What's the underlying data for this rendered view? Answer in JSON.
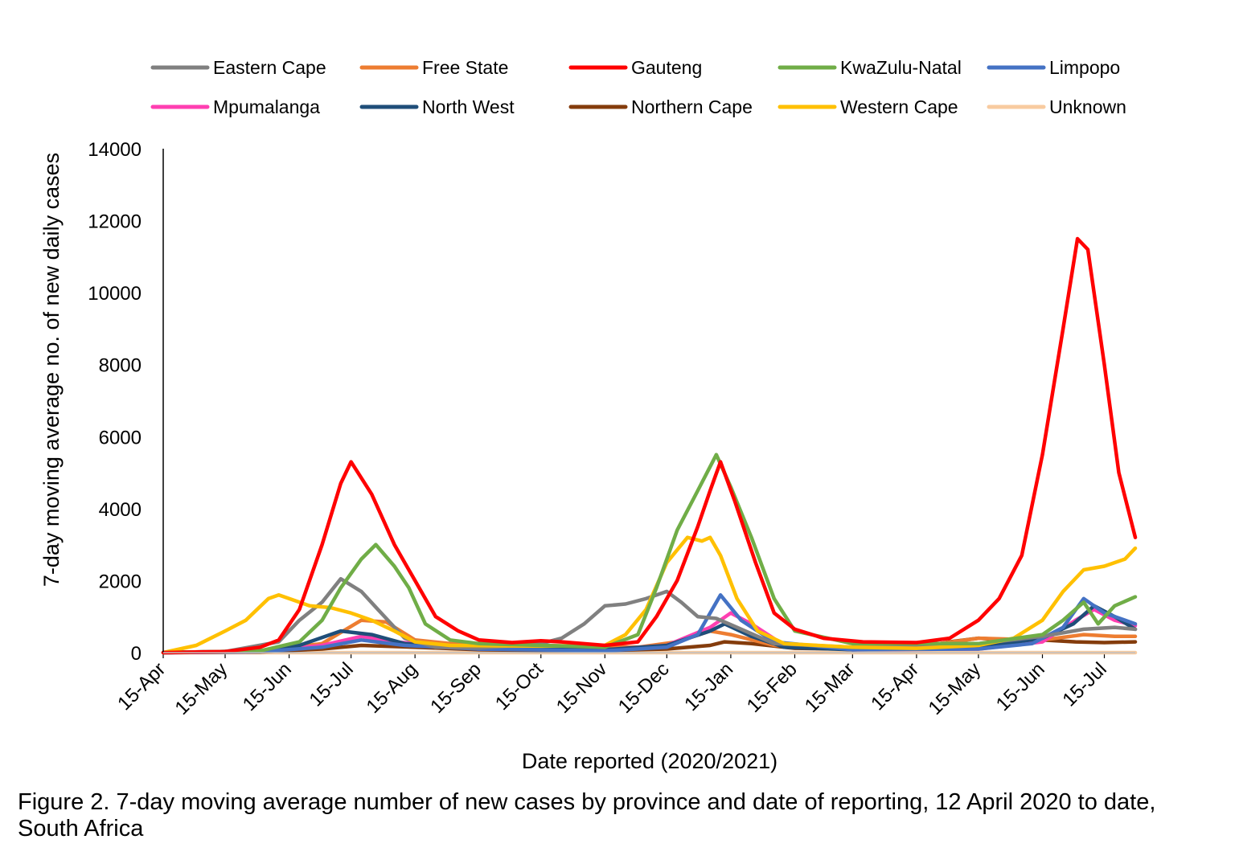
{
  "caption": "Figure 2. 7-day moving average number of new cases by province and date of reporting, 12 April 2020 to date, South Africa",
  "chart_data": {
    "type": "line",
    "xlabel": "Date reported (2020/2021)",
    "ylabel": "7-day moving average no. of new daily cases",
    "ylim": [
      0,
      14000
    ],
    "yticks": [
      0,
      2000,
      4000,
      6000,
      8000,
      10000,
      12000,
      14000
    ],
    "xlim": [
      "2020-04-15",
      "2021-07-30"
    ],
    "xticks": [
      {
        "date": "2020-04-15",
        "label": "15-Apr"
      },
      {
        "date": "2020-05-15",
        "label": "15-May"
      },
      {
        "date": "2020-06-15",
        "label": "15-Jun"
      },
      {
        "date": "2020-07-15",
        "label": "15-Jul"
      },
      {
        "date": "2020-08-15",
        "label": "15-Aug"
      },
      {
        "date": "2020-09-15",
        "label": "15-Sep"
      },
      {
        "date": "2020-10-15",
        "label": "15-Oct"
      },
      {
        "date": "2020-11-15",
        "label": "15-Nov"
      },
      {
        "date": "2020-12-15",
        "label": "15-Dec"
      },
      {
        "date": "2021-01-15",
        "label": "15-Jan"
      },
      {
        "date": "2021-02-15",
        "label": "15-Feb"
      },
      {
        "date": "2021-03-15",
        "label": "15-Mar"
      },
      {
        "date": "2021-04-15",
        "label": "15-Apr"
      },
      {
        "date": "2021-05-15",
        "label": "15-May"
      },
      {
        "date": "2021-06-15",
        "label": "15-Jun"
      },
      {
        "date": "2021-07-15",
        "label": "15-Jul"
      }
    ],
    "legend_position": "top",
    "grid": false,
    "series": [
      {
        "name": "Eastern Cape",
        "color": "#808080",
        "points": [
          [
            "2020-04-15",
            0
          ],
          [
            "2020-05-15",
            30
          ],
          [
            "2020-06-10",
            300
          ],
          [
            "2020-06-20",
            900
          ],
          [
            "2020-07-01",
            1400
          ],
          [
            "2020-07-10",
            2050
          ],
          [
            "2020-07-20",
            1700
          ],
          [
            "2020-07-28",
            1200
          ],
          [
            "2020-08-10",
            400
          ],
          [
            "2020-08-25",
            150
          ],
          [
            "2020-09-15",
            130
          ],
          [
            "2020-10-15",
            250
          ],
          [
            "2020-10-25",
            400
          ],
          [
            "2020-11-05",
            800
          ],
          [
            "2020-11-15",
            1300
          ],
          [
            "2020-11-25",
            1350
          ],
          [
            "2020-12-05",
            1500
          ],
          [
            "2020-12-15",
            1700
          ],
          [
            "2020-12-22",
            1400
          ],
          [
            "2020-12-30",
            1000
          ],
          [
            "2021-01-08",
            950
          ],
          [
            "2021-01-18",
            700
          ],
          [
            "2021-02-05",
            250
          ],
          [
            "2021-03-15",
            150
          ],
          [
            "2021-05-15",
            250
          ],
          [
            "2021-06-15",
            450
          ],
          [
            "2021-07-05",
            650
          ],
          [
            "2021-07-20",
            700
          ],
          [
            "2021-07-30",
            650
          ]
        ]
      },
      {
        "name": "Free State",
        "color": "#ed7d31",
        "points": [
          [
            "2020-04-15",
            0
          ],
          [
            "2020-06-01",
            50
          ],
          [
            "2020-07-01",
            250
          ],
          [
            "2020-07-20",
            900
          ],
          [
            "2020-08-01",
            850
          ],
          [
            "2020-08-15",
            350
          ],
          [
            "2020-09-01",
            250
          ],
          [
            "2020-10-15",
            200
          ],
          [
            "2020-12-01",
            150
          ],
          [
            "2020-12-20",
            300
          ],
          [
            "2021-01-05",
            600
          ],
          [
            "2021-01-15",
            500
          ],
          [
            "2021-02-05",
            200
          ],
          [
            "2021-03-15",
            120
          ],
          [
            "2021-04-20",
            200
          ],
          [
            "2021-05-15",
            400
          ],
          [
            "2021-06-15",
            350
          ],
          [
            "2021-07-05",
            500
          ],
          [
            "2021-07-20",
            450
          ],
          [
            "2021-07-30",
            450
          ]
        ]
      },
      {
        "name": "Gauteng",
        "color": "#ff0000",
        "points": [
          [
            "2020-04-15",
            0
          ],
          [
            "2020-05-15",
            30
          ],
          [
            "2020-06-01",
            150
          ],
          [
            "2020-06-10",
            350
          ],
          [
            "2020-06-20",
            1200
          ],
          [
            "2020-07-01",
            3000
          ],
          [
            "2020-07-10",
            4700
          ],
          [
            "2020-07-15",
            5300
          ],
          [
            "2020-07-25",
            4400
          ],
          [
            "2020-08-05",
            3000
          ],
          [
            "2020-08-15",
            2000
          ],
          [
            "2020-08-25",
            1000
          ],
          [
            "2020-09-05",
            600
          ],
          [
            "2020-09-15",
            350
          ],
          [
            "2020-10-01",
            280
          ],
          [
            "2020-10-15",
            330
          ],
          [
            "2020-10-25",
            300
          ],
          [
            "2020-11-15",
            200
          ],
          [
            "2020-12-01",
            300
          ],
          [
            "2020-12-10",
            1000
          ],
          [
            "2020-12-20",
            2000
          ],
          [
            "2020-12-30",
            3500
          ],
          [
            "2021-01-05",
            4500
          ],
          [
            "2021-01-10",
            5300
          ],
          [
            "2021-01-17",
            4200
          ],
          [
            "2021-01-27",
            2500
          ],
          [
            "2021-02-05",
            1100
          ],
          [
            "2021-02-15",
            650
          ],
          [
            "2021-03-01",
            400
          ],
          [
            "2021-03-20",
            300
          ],
          [
            "2021-04-15",
            280
          ],
          [
            "2021-05-01",
            400
          ],
          [
            "2021-05-15",
            900
          ],
          [
            "2021-05-25",
            1500
          ],
          [
            "2021-06-05",
            2700
          ],
          [
            "2021-06-15",
            5500
          ],
          [
            "2021-06-25",
            9000
          ],
          [
            "2021-07-02",
            11500
          ],
          [
            "2021-07-07",
            11200
          ],
          [
            "2021-07-15",
            8000
          ],
          [
            "2021-07-22",
            5000
          ],
          [
            "2021-07-30",
            3200
          ]
        ]
      },
      {
        "name": "KwaZulu-Natal",
        "color": "#70ad47",
        "points": [
          [
            "2020-04-15",
            0
          ],
          [
            "2020-06-01",
            50
          ],
          [
            "2020-06-20",
            300
          ],
          [
            "2020-07-01",
            900
          ],
          [
            "2020-07-10",
            1800
          ],
          [
            "2020-07-20",
            2600
          ],
          [
            "2020-07-27",
            3000
          ],
          [
            "2020-08-05",
            2400
          ],
          [
            "2020-08-12",
            1800
          ],
          [
            "2020-08-20",
            800
          ],
          [
            "2020-09-01",
            350
          ],
          [
            "2020-09-15",
            250
          ],
          [
            "2020-10-15",
            200
          ],
          [
            "2020-11-15",
            150
          ],
          [
            "2020-12-01",
            500
          ],
          [
            "2020-12-10",
            1800
          ],
          [
            "2020-12-20",
            3400
          ],
          [
            "2020-12-30",
            4500
          ],
          [
            "2021-01-08",
            5500
          ],
          [
            "2021-01-15",
            4600
          ],
          [
            "2021-01-25",
            3200
          ],
          [
            "2021-02-05",
            1500
          ],
          [
            "2021-02-15",
            600
          ],
          [
            "2021-03-15",
            250
          ],
          [
            "2021-05-15",
            250
          ],
          [
            "2021-06-15",
            500
          ],
          [
            "2021-06-25",
            900
          ],
          [
            "2021-07-05",
            1400
          ],
          [
            "2021-07-12",
            800
          ],
          [
            "2021-07-20",
            1300
          ],
          [
            "2021-07-30",
            1550
          ]
        ]
      },
      {
        "name": "Limpopo",
        "color": "#4472c4",
        "points": [
          [
            "2020-04-15",
            0
          ],
          [
            "2020-06-01",
            30
          ],
          [
            "2020-07-01",
            150
          ],
          [
            "2020-07-20",
            350
          ],
          [
            "2020-08-10",
            200
          ],
          [
            "2020-09-15",
            100
          ],
          [
            "2020-11-15",
            50
          ],
          [
            "2020-12-15",
            150
          ],
          [
            "2020-12-30",
            500
          ],
          [
            "2021-01-10",
            1600
          ],
          [
            "2021-01-20",
            900
          ],
          [
            "2021-02-05",
            300
          ],
          [
            "2021-03-15",
            80
          ],
          [
            "2021-05-15",
            100
          ],
          [
            "2021-06-10",
            250
          ],
          [
            "2021-06-25",
            700
          ],
          [
            "2021-07-05",
            1500
          ],
          [
            "2021-07-15",
            1100
          ],
          [
            "2021-07-30",
            800
          ]
        ]
      },
      {
        "name": "Mpumalanga",
        "color": "#ff3fb1",
        "points": [
          [
            "2020-04-15",
            0
          ],
          [
            "2020-06-01",
            30
          ],
          [
            "2020-07-01",
            200
          ],
          [
            "2020-07-20",
            450
          ],
          [
            "2020-08-05",
            300
          ],
          [
            "2020-09-15",
            100
          ],
          [
            "2020-11-15",
            80
          ],
          [
            "2020-12-15",
            200
          ],
          [
            "2021-01-05",
            700
          ],
          [
            "2021-01-15",
            1100
          ],
          [
            "2021-01-25",
            800
          ],
          [
            "2021-02-10",
            200
          ],
          [
            "2021-03-15",
            80
          ],
          [
            "2021-05-15",
            100
          ],
          [
            "2021-06-15",
            300
          ],
          [
            "2021-07-01",
            900
          ],
          [
            "2021-07-10",
            1200
          ],
          [
            "2021-07-20",
            900
          ],
          [
            "2021-07-30",
            750
          ]
        ]
      },
      {
        "name": "North West",
        "color": "#1f4e79",
        "points": [
          [
            "2020-04-15",
            0
          ],
          [
            "2020-06-01",
            50
          ],
          [
            "2020-06-20",
            200
          ],
          [
            "2020-07-10",
            600
          ],
          [
            "2020-07-25",
            500
          ],
          [
            "2020-08-10",
            250
          ],
          [
            "2020-09-15",
            100
          ],
          [
            "2020-11-15",
            80
          ],
          [
            "2020-12-15",
            200
          ],
          [
            "2021-01-05",
            600
          ],
          [
            "2021-01-12",
            800
          ],
          [
            "2021-01-25",
            450
          ],
          [
            "2021-02-10",
            150
          ],
          [
            "2021-03-15",
            80
          ],
          [
            "2021-05-15",
            150
          ],
          [
            "2021-06-15",
            400
          ],
          [
            "2021-06-30",
            800
          ],
          [
            "2021-07-10",
            1300
          ],
          [
            "2021-07-20",
            1000
          ],
          [
            "2021-07-30",
            650
          ]
        ]
      },
      {
        "name": "Northern Cape",
        "color": "#843c0c",
        "points": [
          [
            "2020-04-15",
            0
          ],
          [
            "2020-06-01",
            20
          ],
          [
            "2020-07-01",
            100
          ],
          [
            "2020-07-20",
            200
          ],
          [
            "2020-08-15",
            150
          ],
          [
            "2020-09-15",
            80
          ],
          [
            "2020-10-15",
            60
          ],
          [
            "2020-11-15",
            60
          ],
          [
            "2020-12-15",
            100
          ],
          [
            "2021-01-05",
            200
          ],
          [
            "2021-01-12",
            300
          ],
          [
            "2021-01-25",
            250
          ],
          [
            "2021-02-15",
            120
          ],
          [
            "2021-03-15",
            100
          ],
          [
            "2021-04-15",
            120
          ],
          [
            "2021-05-01",
            300
          ],
          [
            "2021-05-15",
            400
          ],
          [
            "2021-06-01",
            350
          ],
          [
            "2021-06-15",
            350
          ],
          [
            "2021-07-01",
            300
          ],
          [
            "2021-07-15",
            280
          ],
          [
            "2021-07-30",
            300
          ]
        ]
      },
      {
        "name": "Western Cape",
        "color": "#ffc000",
        "points": [
          [
            "2020-04-15",
            0
          ],
          [
            "2020-05-01",
            200
          ],
          [
            "2020-05-15",
            600
          ],
          [
            "2020-05-25",
            900
          ],
          [
            "2020-06-05",
            1500
          ],
          [
            "2020-06-10",
            1600
          ],
          [
            "2020-06-15",
            1500
          ],
          [
            "2020-06-25",
            1300
          ],
          [
            "2020-07-05",
            1250
          ],
          [
            "2020-07-15",
            1100
          ],
          [
            "2020-07-25",
            900
          ],
          [
            "2020-08-05",
            600
          ],
          [
            "2020-08-15",
            300
          ],
          [
            "2020-09-01",
            200
          ],
          [
            "2020-10-15",
            180
          ],
          [
            "2020-11-15",
            200
          ],
          [
            "2020-11-25",
            500
          ],
          [
            "2020-12-05",
            1200
          ],
          [
            "2020-12-15",
            2500
          ],
          [
            "2020-12-25",
            3200
          ],
          [
            "2021-01-01",
            3100
          ],
          [
            "2021-01-05",
            3200
          ],
          [
            "2021-01-10",
            2700
          ],
          [
            "2021-01-18",
            1500
          ],
          [
            "2021-01-28",
            600
          ],
          [
            "2021-02-10",
            250
          ],
          [
            "2021-03-15",
            150
          ],
          [
            "2021-04-15",
            120
          ],
          [
            "2021-05-15",
            200
          ],
          [
            "2021-06-01",
            400
          ],
          [
            "2021-06-15",
            900
          ],
          [
            "2021-06-25",
            1700
          ],
          [
            "2021-07-05",
            2300
          ],
          [
            "2021-07-15",
            2400
          ],
          [
            "2021-07-25",
            2600
          ],
          [
            "2021-07-30",
            2900
          ]
        ]
      },
      {
        "name": "Unknown",
        "color": "#f8cba0",
        "points": [
          [
            "2020-04-15",
            0
          ],
          [
            "2021-07-30",
            0
          ]
        ]
      }
    ]
  }
}
